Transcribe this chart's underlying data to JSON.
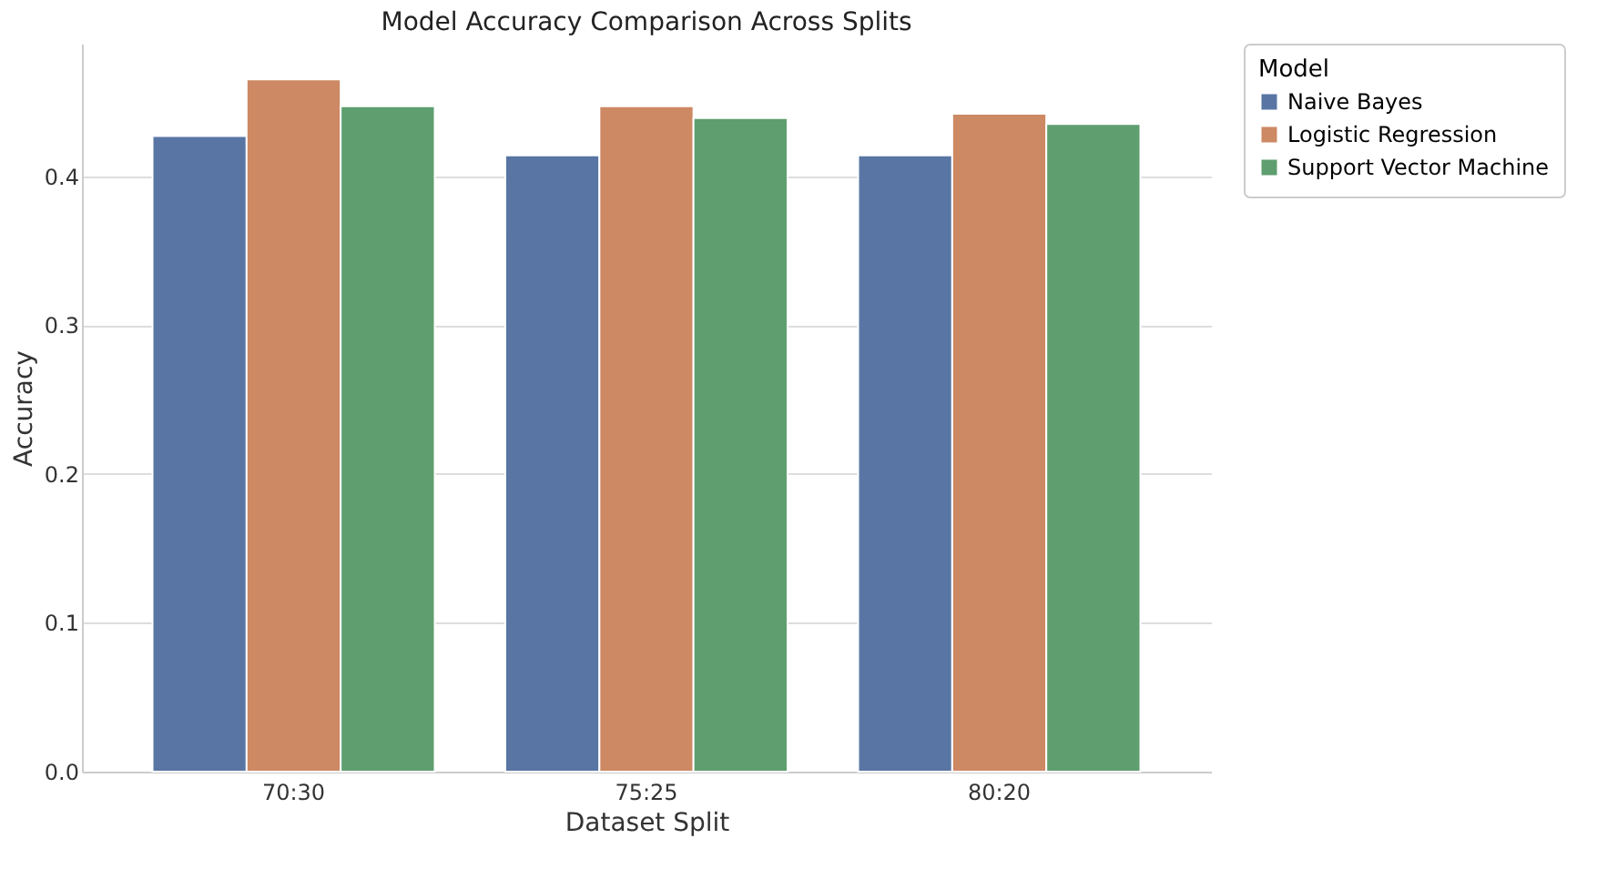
{
  "chart_data": {
    "type": "bar",
    "title": "Model Accuracy Comparison Across Splits",
    "xlabel": "Dataset Split",
    "ylabel": "Accuracy",
    "legend_title": "Model",
    "categories": [
      "70:30",
      "75:25",
      "80:20"
    ],
    "series": [
      {
        "name": "Naive Bayes",
        "color": "#5875a4",
        "values": [
          0.427,
          0.414,
          0.414
        ]
      },
      {
        "name": "Logistic Regression",
        "color": "#cc8963",
        "values": [
          0.465,
          0.447,
          0.442
        ]
      },
      {
        "name": "Support Vector Machine",
        "color": "#5f9e6e",
        "values": [
          0.447,
          0.439,
          0.435
        ]
      }
    ],
    "ylim": [
      0,
      0.489
    ],
    "yticks": [
      {
        "value": 0,
        "label": "0.0"
      },
      {
        "value": 0.1,
        "label": "0.1"
      },
      {
        "value": 0.2,
        "label": "0.2"
      },
      {
        "value": 0.3,
        "label": "0.3"
      },
      {
        "value": 0.4,
        "label": "0.4"
      }
    ],
    "grid": "y",
    "legend": "top right"
  }
}
